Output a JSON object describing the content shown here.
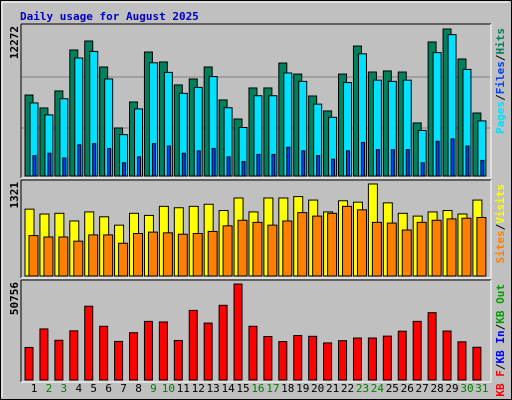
{
  "title": "Daily usage for August 2025",
  "legend_separator": "/",
  "categories": [
    "1",
    "2",
    "3",
    "4",
    "5",
    "6",
    "7",
    "8",
    "9",
    "10",
    "11",
    "12",
    "13",
    "14",
    "15",
    "16",
    "17",
    "18",
    "19",
    "20",
    "21",
    "22",
    "23",
    "24",
    "25",
    "26",
    "27",
    "28",
    "29",
    "30",
    "31"
  ],
  "category_colors": [
    "#000000",
    "#008000",
    "#008000",
    "#000000",
    "#000000",
    "#000000",
    "#000000",
    "#000000",
    "#008000",
    "#008000",
    "#000000",
    "#000000",
    "#000000",
    "#000000",
    "#000000",
    "#008000",
    "#008000",
    "#000000",
    "#000000",
    "#000000",
    "#000000",
    "#000000",
    "#008000",
    "#008000",
    "#000000",
    "#000000",
    "#000000",
    "#000000",
    "#000000",
    "#008000",
    "#008000"
  ],
  "chart_data": [
    {
      "type": "bar",
      "ylim": [
        0,
        12272
      ],
      "yticks": [
        12272
      ],
      "gridlines": [
        4007,
        8265
      ],
      "series": [
        {
          "name": "Hits",
          "color": "#00805c",
          "values": [
            6760,
            5680,
            7100,
            10520,
            11270,
            9100,
            4010,
            6180,
            10350,
            9520,
            7600,
            8100,
            9100,
            6350,
            4760,
            7350,
            7350,
            9430,
            8510,
            6680,
            5430,
            8510,
            10850,
            8680,
            8770,
            8680,
            4430,
            11190,
            12272,
            9770,
            5260
          ]
        },
        {
          "name": "Files",
          "color": "#0040ff",
          "values": [
            1700,
            1900,
            1500,
            2600,
            2700,
            2300,
            1100,
            1600,
            2700,
            2500,
            1900,
            2100,
            2300,
            1600,
            1200,
            1800,
            1800,
            2400,
            2100,
            1700,
            1400,
            2100,
            2800,
            2200,
            2200,
            2200,
            1100,
            2900,
            3100,
            2500,
            1300
          ]
        },
        {
          "name": "Pages",
          "color": "#00e0ff",
          "values": [
            6100,
            5100,
            6450,
            9850,
            10400,
            8100,
            3450,
            5600,
            9450,
            8650,
            6900,
            7400,
            8300,
            5700,
            4050,
            6700,
            6700,
            8600,
            7900,
            6000,
            4900,
            7800,
            10200,
            8000,
            7900,
            8000,
            3800,
            10300,
            11800,
            8900,
            4600
          ]
        }
      ]
    },
    {
      "type": "bar",
      "ylim": [
        0,
        1321
      ],
      "yticks": [
        1321
      ],
      "series": [
        {
          "name": "Visits",
          "color": "#ffff00",
          "values": [
            960,
            890,
            900,
            790,
            920,
            850,
            730,
            900,
            870,
            1000,
            980,
            1000,
            1030,
            940,
            1120,
            920,
            1120,
            1120,
            1140,
            1090,
            920,
            1080,
            1060,
            1321,
            1050,
            900,
            860,
            920,
            940,
            890,
            1090
          ]
        },
        {
          "name": "Sites",
          "color": "#ff8000",
          "values": [
            580,
            560,
            560,
            500,
            590,
            590,
            470,
            610,
            630,
            620,
            600,
            610,
            640,
            720,
            800,
            770,
            730,
            790,
            910,
            860,
            900,
            1000,
            950,
            770,
            760,
            660,
            770,
            800,
            820,
            830,
            840
          ]
        }
      ]
    },
    {
      "type": "bar",
      "ylim": [
        0,
        50756
      ],
      "yticks": [
        50756
      ],
      "series": [
        {
          "name": "KB F",
          "color": "#ff0000",
          "values": [
            17200,
            27000,
            21000,
            26000,
            39000,
            28400,
            20400,
            25000,
            31000,
            30700,
            20900,
            36800,
            30100,
            39500,
            50756,
            28400,
            23000,
            20300,
            23500,
            23100,
            19600,
            20800,
            22200,
            22200,
            23200,
            25800,
            31000,
            35600,
            25900,
            20200,
            17300
          ]
        }
      ],
      "legend_extra": [
        {
          "name": "KB In",
          "color": "#0000ff"
        },
        {
          "name": "KB Out",
          "color": "#00a000"
        }
      ]
    }
  ]
}
